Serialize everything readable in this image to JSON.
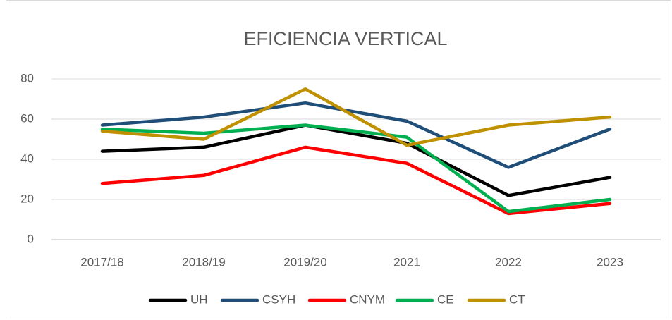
{
  "chart_data": {
    "type": "line",
    "title": "EFICIENCIA VERTICAL",
    "categories": [
      "2017/18",
      "2018/19",
      "2019/20",
      "2021",
      "2022",
      "2023"
    ],
    "series": [
      {
        "name": "UH",
        "color": "#000000",
        "values": [
          44,
          46,
          57,
          48,
          22,
          31
        ]
      },
      {
        "name": "CSYH",
        "color": "#1f4e79",
        "values": [
          57,
          61,
          68,
          59,
          36,
          55
        ]
      },
      {
        "name": "CNYM",
        "color": "#ff0000",
        "values": [
          28,
          32,
          46,
          38,
          13,
          18
        ]
      },
      {
        "name": "CE",
        "color": "#00b050",
        "values": [
          55,
          53,
          57,
          51,
          14,
          20
        ]
      },
      {
        "name": "CT",
        "color": "#bf9000",
        "values": [
          54,
          50,
          75,
          47,
          57,
          61
        ]
      }
    ],
    "ylim": [
      0,
      80
    ],
    "yticks": [
      0,
      20,
      40,
      60,
      80
    ],
    "grid": true,
    "legend": "bottom"
  }
}
